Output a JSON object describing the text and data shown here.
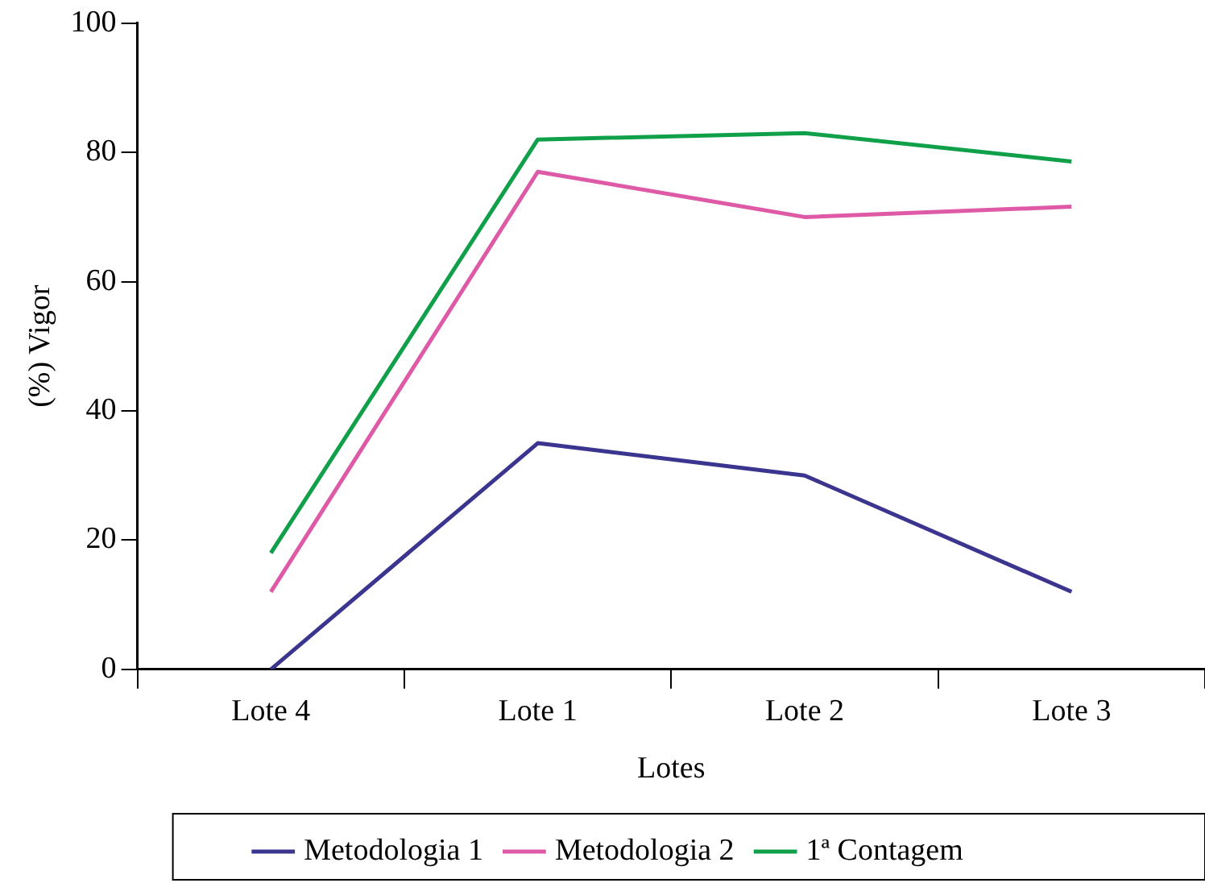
{
  "chart_data": {
    "type": "line",
    "xlabel": "Lotes",
    "ylabel": "(%) Vigor",
    "categories": [
      "Lote 4",
      "Lote 1",
      "Lote 2",
      "Lote 3"
    ],
    "series": [
      {
        "name": "Metodologia 1",
        "color": "#3b3590",
        "values": [
          0,
          35,
          30,
          12
        ]
      },
      {
        "name": "Metodologia 2",
        "color": "#de5aa6",
        "values": [
          12,
          77,
          70,
          71.6
        ]
      },
      {
        "name": "1ª Contagem",
        "color": "#11a04a",
        "values": [
          18,
          82,
          83,
          78.6
        ]
      }
    ],
    "ylim": [
      0,
      100
    ],
    "yticks": [
      0,
      20,
      40,
      60,
      80,
      100
    ],
    "grid": false,
    "legend": "bottom",
    "marker": "none",
    "line_style": "solid"
  }
}
